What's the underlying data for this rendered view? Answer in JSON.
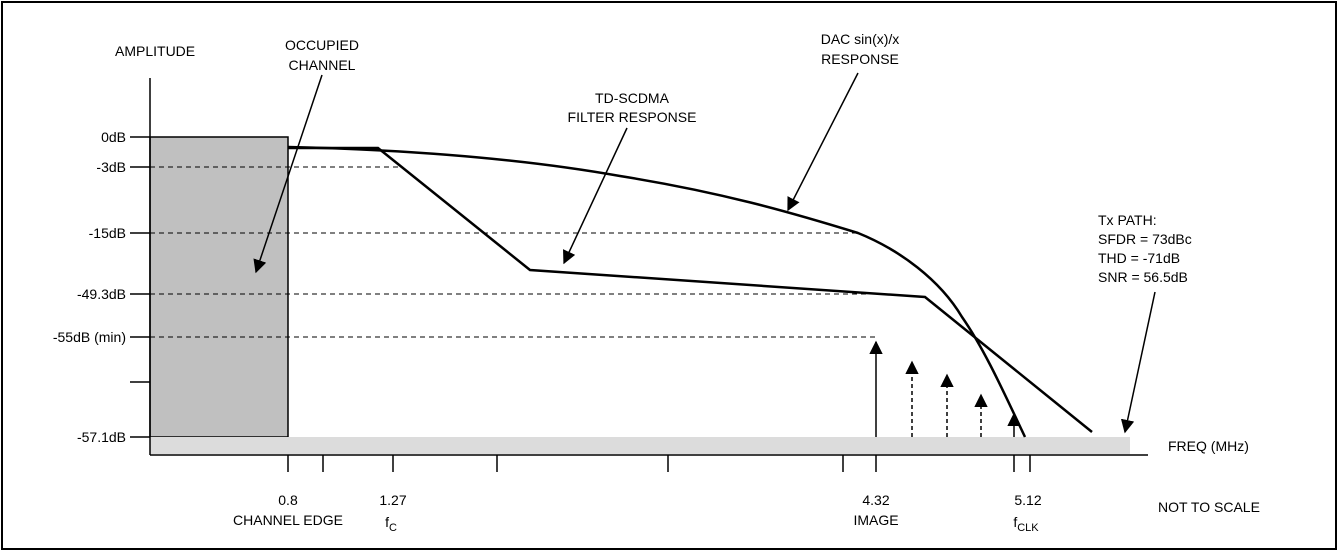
{
  "labels": {
    "amplitude": "AMPLITUDE",
    "occupied_channel": [
      "OCCUPIED",
      "CHANNEL"
    ],
    "dac_response": [
      "DAC sin(x)/x",
      "RESPONSE"
    ],
    "filter_response": [
      "TD-SCDMA",
      "FILTER RESPONSE"
    ],
    "tx_path": [
      "Tx PATH:",
      "SFDR = 73dBc",
      "THD = -71dB",
      "SNR = 56.5dB"
    ],
    "freq_axis": "FREQ (MHz)",
    "not_to_scale": "NOT TO SCALE"
  },
  "y_ticks": [
    {
      "id": "0db",
      "label": "0dB"
    },
    {
      "id": "m3db",
      "label": "-3dB"
    },
    {
      "id": "m15db",
      "label": "-15dB"
    },
    {
      "id": "m49db",
      "label": "-49.3dB"
    },
    {
      "id": "m55db",
      "label": "-55dB (min)"
    },
    {
      "id": "m57db",
      "label": "-57.1dB"
    }
  ],
  "x_labels": {
    "channel_edge": {
      "value": "0.8",
      "name": "CHANNEL EDGE"
    },
    "fc": {
      "value": "1.27",
      "sym": "f",
      "sub": "C"
    },
    "image": {
      "value": "4.32",
      "name": "IMAGE"
    },
    "fclk": {
      "value": "5.12",
      "sym": "f",
      "sub": "CLK"
    }
  },
  "colors": {
    "occupied_fill": "#c0c0c0",
    "noise_floor_fill": "#dcdcdc",
    "line": "#000000"
  }
}
